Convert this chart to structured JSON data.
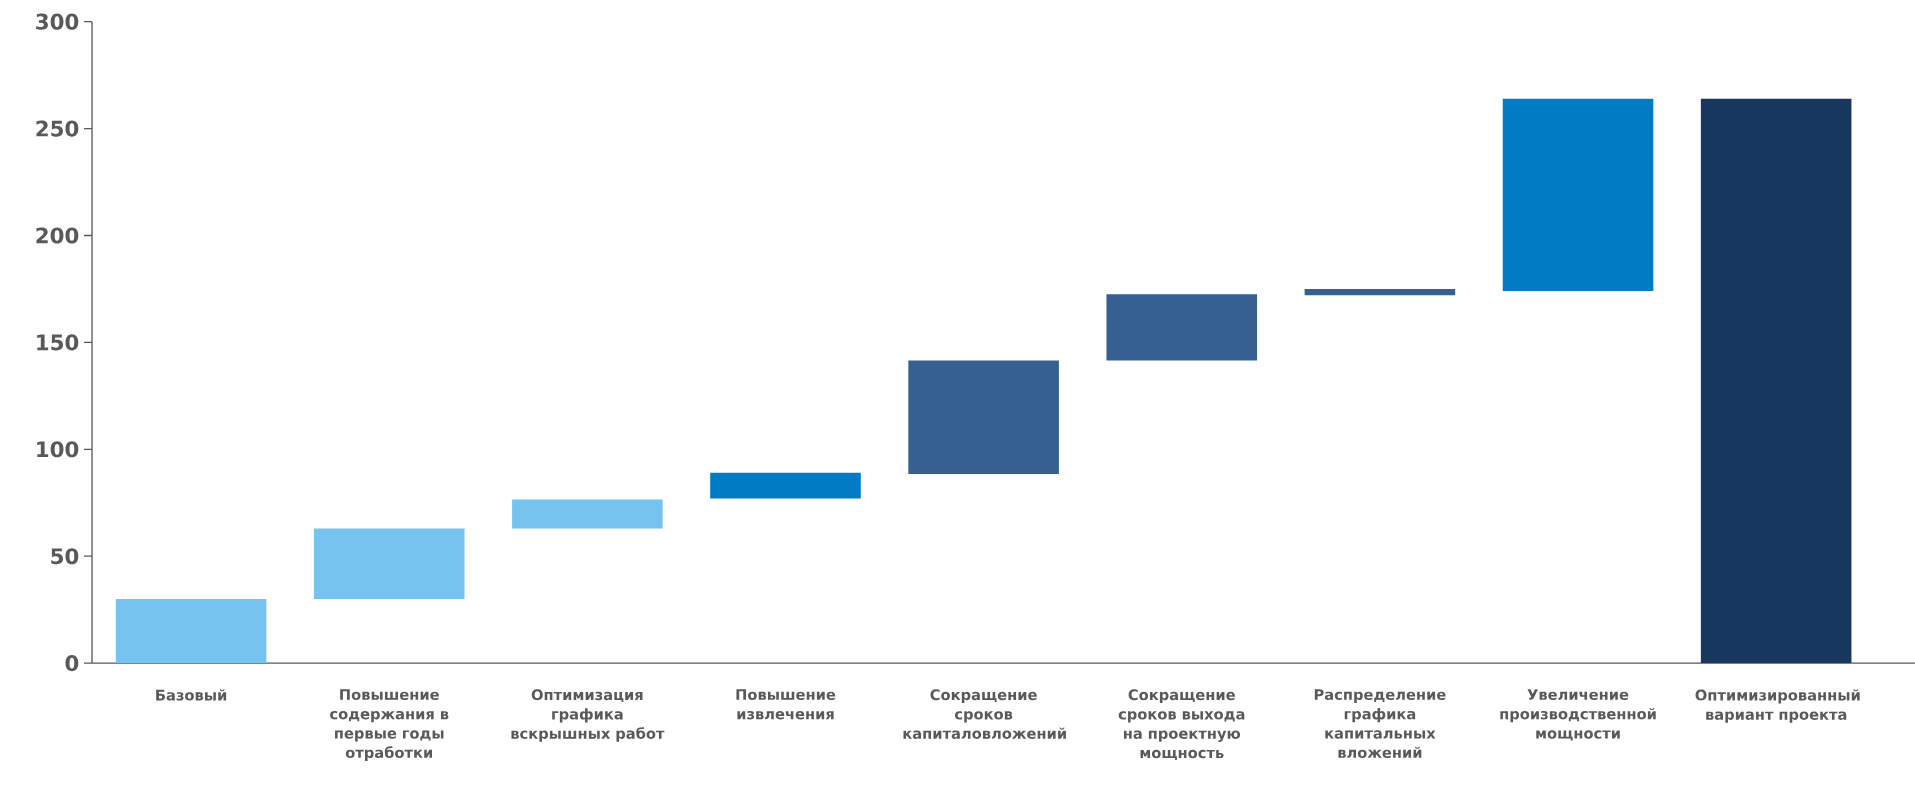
{
  "chart_data": {
    "type": "bar",
    "categories": [
      "Базовый",
      "Повышение содержания в первые годы отработки",
      "Оптимизация графика вскрышных работ",
      "Повышение извлечения",
      "Сокращение сроков капиталовложений",
      "Сокращение сроков выхода на проектную мощность",
      "Распределение графика капитальных вложений",
      "Увеличение производственной мощности",
      "Оптимизированный вариант проекта"
    ],
    "values": [
      30,
      33,
      13.5,
      12,
      53,
      31,
      3,
      90,
      264
    ],
    "base": [
      0,
      30,
      63,
      77,
      88.5,
      141.5,
      172,
      174,
      0
    ],
    "colors": [
      "#75c3ee",
      "#75c3ee",
      "#75c3ee",
      "#007bc4",
      "#356091",
      "#356091",
      "#356091",
      "#007bc4",
      "#18375f"
    ],
    "ylim": [
      0,
      300
    ],
    "yticks": [
      0,
      50,
      100,
      150,
      200,
      250,
      300
    ]
  }
}
